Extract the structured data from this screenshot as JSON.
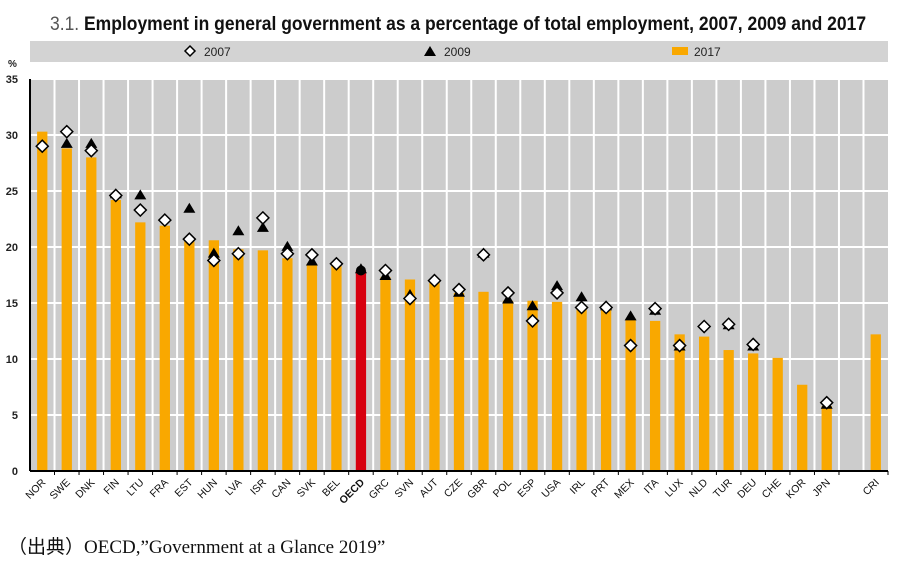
{
  "title_number": "3.1.",
  "title": "Employment in general government as a percentage of total employment, 2007, 2009 and 2017",
  "source": "（出典）OECD,”Government  at a Glance 2019”",
  "colors": {
    "bar": "#f9a800",
    "highlight": "#d7000f",
    "plot_bg": "#cccccc",
    "grid": "#ffffff"
  },
  "chart_data": {
    "type": "bar",
    "ylabel": "%",
    "ylim": [
      0,
      35
    ],
    "yticks": [
      0,
      5,
      10,
      15,
      20,
      25,
      30,
      35
    ],
    "grid": true,
    "legend_placement": "top",
    "highlight_category": "OECD",
    "categories": [
      "NOR",
      "SWE",
      "DNK",
      "FIN",
      "LTU",
      "FRA",
      "EST",
      "HUN",
      "LVA",
      "ISR",
      "CAN",
      "SVK",
      "BEL",
      "OECD",
      "GRC",
      "SVN",
      "AUT",
      "CZE",
      "GBR",
      "POL",
      "ESP",
      "USA",
      "IRL",
      "PRT",
      "MEX",
      "ITA",
      "LUX",
      "NLD",
      "TUR",
      "DEU",
      "CHE",
      "KOR",
      "JPN",
      "",
      "CRI"
    ],
    "series": [
      {
        "name": "2007",
        "marker": "diamond",
        "values": [
          29.0,
          30.3,
          28.6,
          24.6,
          23.3,
          22.4,
          20.7,
          18.8,
          19.4,
          22.6,
          19.4,
          19.3,
          18.5,
          17.9,
          17.9,
          15.4,
          17.0,
          16.2,
          19.3,
          15.9,
          13.4,
          15.9,
          14.6,
          14.6,
          11.2,
          14.5,
          11.2,
          12.9,
          13.1,
          11.3,
          null,
          null,
          6.1,
          null,
          null
        ]
      },
      {
        "name": "2009",
        "marker": "triangle",
        "values": [
          null,
          29.3,
          29.3,
          24.8,
          24.7,
          null,
          23.5,
          19.5,
          21.5,
          21.8,
          20.1,
          18.8,
          null,
          18.1,
          17.5,
          15.8,
          null,
          16.0,
          19.5,
          15.4,
          14.8,
          16.6,
          15.6,
          14.8,
          13.9,
          14.4,
          11.2,
          null,
          13.1,
          11.2,
          null,
          null,
          6.0,
          null,
          null
        ]
      },
      {
        "name": "2017",
        "marker": "bar",
        "values": [
          30.3,
          28.8,
          28.0,
          24.2,
          22.2,
          21.9,
          20.5,
          20.6,
          19.8,
          19.7,
          19.0,
          18.5,
          18.3,
          17.9,
          17.3,
          17.1,
          16.8,
          15.9,
          16.0,
          15.2,
          15.2,
          15.1,
          14.6,
          14.4,
          13.6,
          13.4,
          12.2,
          12.0,
          10.8,
          10.5,
          10.1,
          7.7,
          5.8,
          null,
          12.2
        ]
      }
    ]
  }
}
